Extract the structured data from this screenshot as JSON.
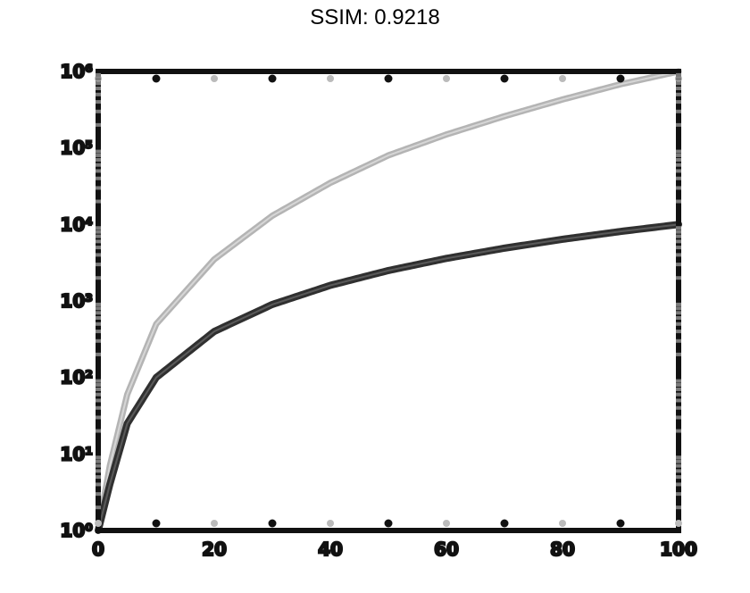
{
  "chart_data": {
    "type": "line",
    "title": "SSIM: 0.9218",
    "xlabel": "",
    "ylabel": "",
    "xlim": [
      0,
      100
    ],
    "ylim": [
      1,
      1000000
    ],
    "yscale": "log",
    "grid": false,
    "legend": "none",
    "x_ticks": [
      0,
      20,
      40,
      60,
      80,
      100
    ],
    "x_tick_labels": [
      "0",
      "20",
      "40",
      "60",
      "80",
      "100"
    ],
    "y_ticks": [
      1,
      10,
      100,
      1000,
      10000,
      100000,
      1000000
    ],
    "y_tick_labels": [
      "10⁰",
      "10¹",
      "10²",
      "10³",
      "10⁴",
      "10⁵",
      "10⁶"
    ],
    "series": [
      {
        "color": "#b4b4b4",
        "x": [
          0,
          2,
          5,
          10,
          20,
          30,
          40,
          50,
          60,
          70,
          80,
          90,
          100
        ],
        "y": [
          1,
          7,
          60,
          500,
          3500,
          13000,
          35000,
          80000,
          150000,
          260000,
          430000,
          680000,
          1000000
        ]
      },
      {
        "color": "#303030",
        "x": [
          0,
          2,
          5,
          10,
          20,
          30,
          40,
          50,
          60,
          70,
          80,
          90,
          100
        ],
        "y": [
          1,
          4,
          25,
          100,
          400,
          900,
          1600,
          2500,
          3600,
          4900,
          6400,
          8100,
          10000
        ]
      }
    ],
    "colors": {
      "axes": "#111111",
      "minor_ticks": "#7a7a7a"
    }
  }
}
